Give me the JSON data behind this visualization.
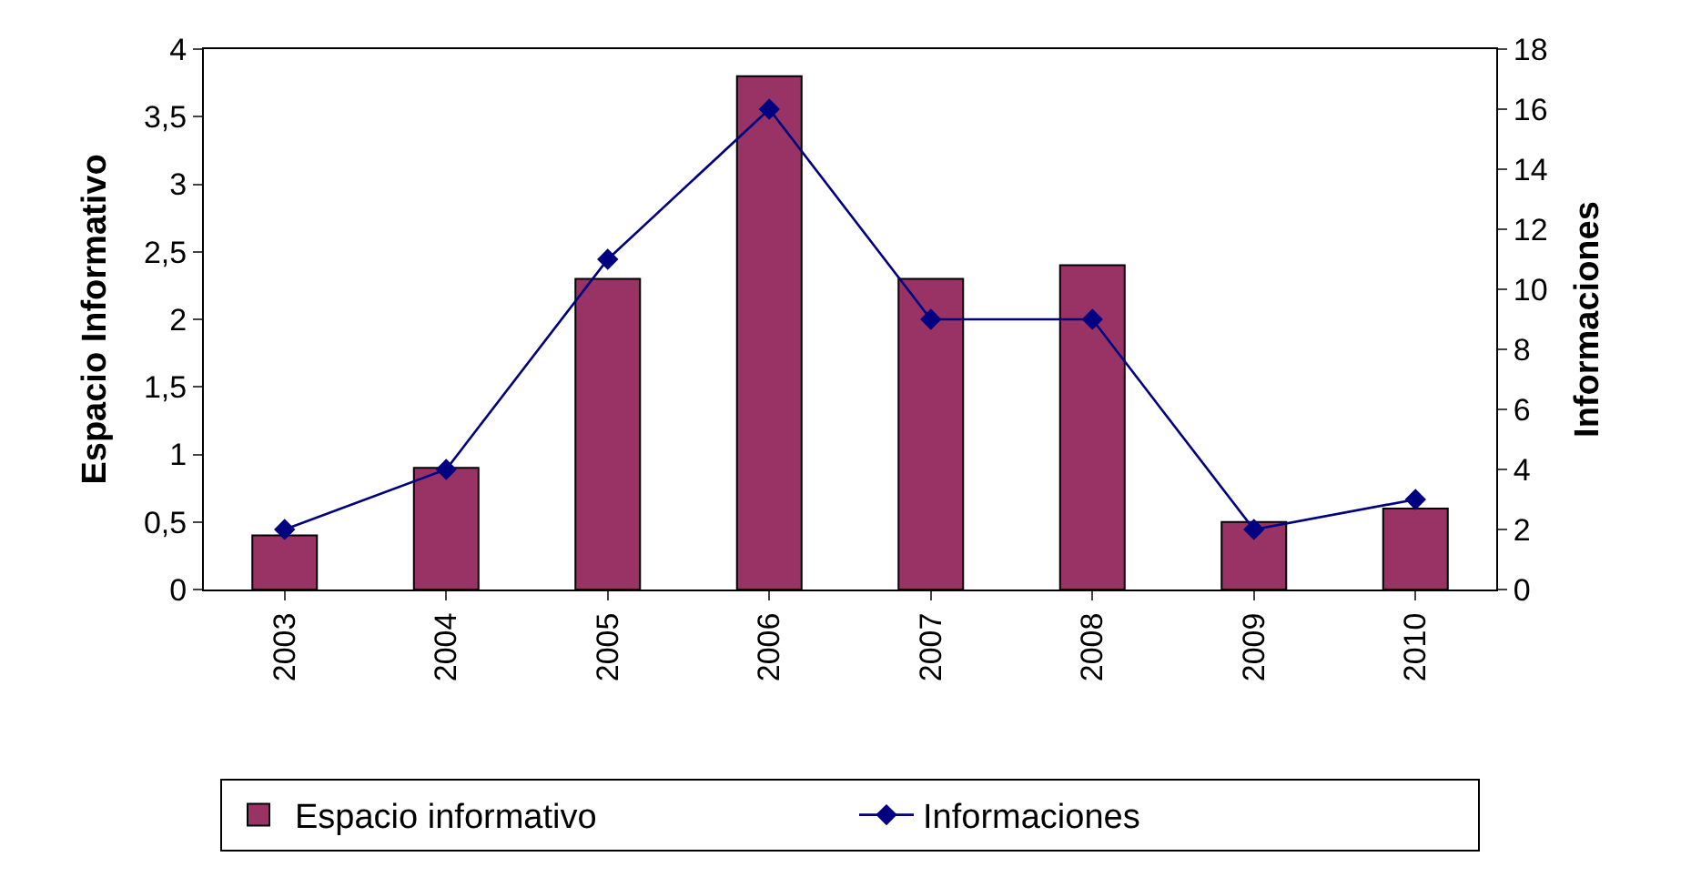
{
  "chart_data": {
    "type": "bar",
    "categories": [
      "2003",
      "2004",
      "2005",
      "2006",
      "2007",
      "2008",
      "2009",
      "2010"
    ],
    "series": [
      {
        "name": "Espacio informativo",
        "color": "#993366",
        "values": [
          0.4,
          0.9,
          2.3,
          3.8,
          2.3,
          2.4,
          0.5,
          0.6
        ]
      },
      {
        "name": "Informaciones",
        "type": "line",
        "axis": "y2",
        "color": "#000080",
        "marker": "diamond",
        "values": [
          2,
          4,
          11,
          16,
          9,
          9,
          2,
          3
        ]
      }
    ],
    "ylabel": "Espacio Informativo",
    "y2label": "Informaciones",
    "ylim": [
      0,
      4
    ],
    "yticks": [
      0,
      {
        "value": 0.5,
        "label": "0,5"
      },
      1,
      {
        "value": 1.5,
        "label": "1,5"
      },
      2,
      {
        "value": 2.5,
        "label": "2,5"
      },
      3,
      {
        "value": 3.5,
        "label": "3,5"
      },
      4
    ],
    "y2lim": [
      0,
      18
    ],
    "y2ticks": [
      0,
      2,
      4,
      6,
      8,
      10,
      12,
      14,
      16,
      18
    ],
    "legend": "bottom"
  }
}
